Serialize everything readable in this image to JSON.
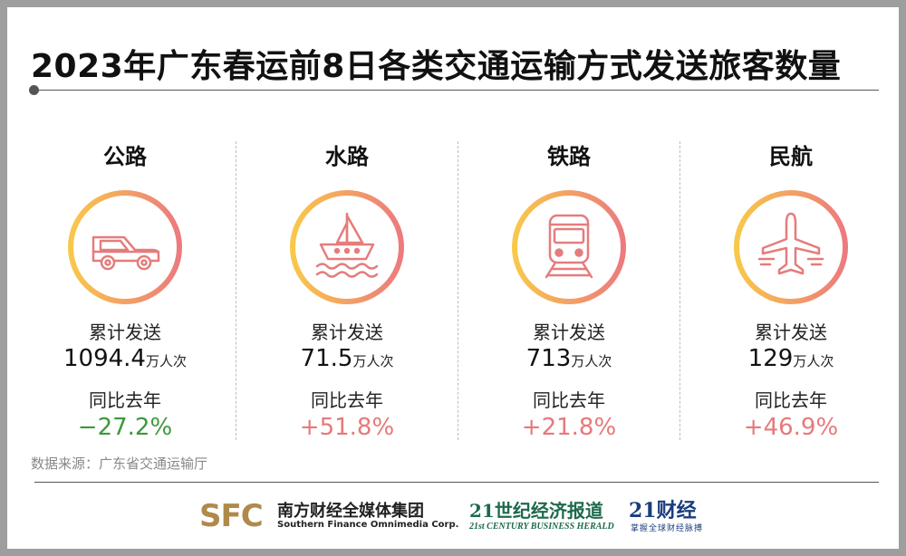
{
  "title": "2023年广东春运前8日各类交通运输方式发送旅客数量",
  "colors": {
    "negative": "#3a9a3a",
    "positive": "#e8787a",
    "ring_start": "#f9c84a",
    "ring_end": "#ec7a7e",
    "icon": "#e57c7c"
  },
  "modes": [
    {
      "name": "公路",
      "icon": "car-icon",
      "cum_label": "累计发送",
      "cum_value": "1094.4",
      "unit": "万人次",
      "yoy_label": "同比去年",
      "yoy_value": "−27.2%",
      "trend": "negative"
    },
    {
      "name": "水路",
      "icon": "ship-icon",
      "cum_label": "累计发送",
      "cum_value": "71.5",
      "unit": "万人次",
      "yoy_label": "同比去年",
      "yoy_value": "+51.8%",
      "trend": "positive"
    },
    {
      "name": "铁路",
      "icon": "train-icon",
      "cum_label": "累计发送",
      "cum_value": "713",
      "unit": "万人次",
      "yoy_label": "同比去年",
      "yoy_value": "+21.8%",
      "trend": "positive"
    },
    {
      "name": "民航",
      "icon": "plane-icon",
      "cum_label": "累计发送",
      "cum_value": "129",
      "unit": "万人次",
      "yoy_label": "同比去年",
      "yoy_value": "+46.9%",
      "trend": "positive"
    }
  ],
  "source": "数据来源：广东省交通运输厅",
  "logos": {
    "sfc_mark": "SFC",
    "sfc_cn": "南方财经全媒体集团",
    "sfc_en": "Southern Finance Omnimedia Corp.",
    "herald_cn": "21世纪经济报道",
    "herald_en": "21st CENTURY BUSINESS HERALD",
    "caijing_cn": "21财经",
    "caijing_sub": "掌握全球财经脉搏"
  }
}
